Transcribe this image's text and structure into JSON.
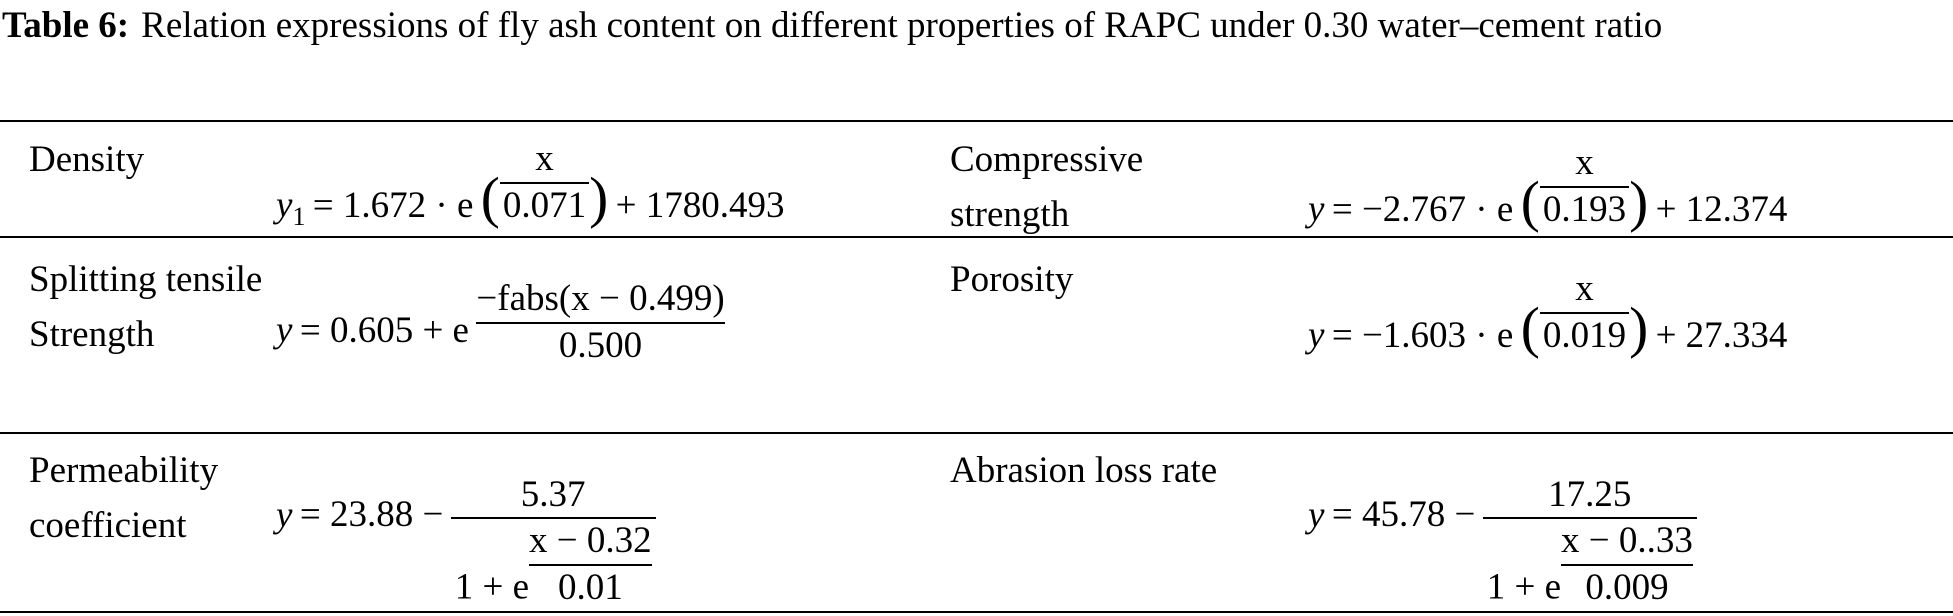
{
  "caption": {
    "label": "Table 6:",
    "text": "Relation expressions of fly ash content on different properties of RAPC under 0.30 water–cement ratio"
  },
  "table": {
    "rows": [
      [
        {
          "property": "Density",
          "formula": {
            "lhs": "y",
            "lhs_sub": "1",
            "prefix": "= 1.672 · e",
            "open": "(",
            "exp_num": "x",
            "exp_den": "0.071",
            "close": ")",
            "suffix": "+ 1780.493"
          }
        },
        {
          "property": "Compressive strength",
          "formula": {
            "lhs": "y",
            "prefix": "= −2.767 · e",
            "open": "(",
            "exp_num": "x",
            "exp_den": "0.193",
            "close": ")",
            "suffix": "+ 12.374"
          }
        }
      ],
      [
        {
          "property": "Splitting tensile Strength",
          "formula": {
            "lhs": "y",
            "prefix": "= 0.605 + e",
            "exp_num": "−fabs(x − 0.499)",
            "exp_den": "0.500"
          }
        },
        {
          "property": "Porosity",
          "formula": {
            "lhs": "y",
            "prefix": "= −1.603 · e",
            "open": "(",
            "exp_num": "x",
            "exp_den": "0.019",
            "close": ")",
            "suffix": "+ 27.334"
          }
        }
      ],
      [
        {
          "property": "Permeability coefficient",
          "formula": {
            "lhs": "y",
            "prefix": "= 23.88 −",
            "num": "5.37",
            "den_prefix": "1 + e",
            "exp_num": "x − 0.32",
            "exp_den": "0.01"
          }
        },
        {
          "property": "Abrasion loss rate",
          "formula": {
            "lhs": "y",
            "prefix": "= 45.78 −",
            "num": "17.25",
            "den_prefix": "1 + e",
            "exp_num": "x − 0..33",
            "exp_den": "0.009"
          }
        }
      ]
    ]
  }
}
